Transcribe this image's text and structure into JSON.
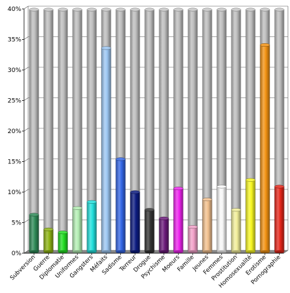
{
  "chart_data": {
    "type": "bar",
    "title": "",
    "xlabel": "",
    "ylabel": "",
    "ylim": [
      0,
      40
    ],
    "y_ticks": [
      0,
      5,
      10,
      15,
      20,
      25,
      30,
      35,
      40
    ],
    "y_tick_labels": [
      "0%",
      "5%",
      "10%",
      "15%",
      "20%",
      "25%",
      "30%",
      "35%",
      "40%"
    ],
    "grid": true,
    "style": "3d-cylinder-stacked-on-gray",
    "background_color": "#bdbdbd",
    "categories": [
      "Subversion",
      "Guerre",
      "Diplomatie",
      "Uniformes",
      "Gangsters",
      "Méfaits",
      "Sadisme",
      "Terreur",
      "Drogue",
      "Psychisme",
      "Moeurs",
      "Famille",
      "Jeunes",
      "Femmes",
      "Prostitution",
      "Homosexualité",
      "Erotisme",
      "Pornographie"
    ],
    "values": [
      6.3,
      3.9,
      3.4,
      7.4,
      8.4,
      33.6,
      15.4,
      10.0,
      7.1,
      5.7,
      10.6,
      4.3,
      8.8,
      10.9,
      7.1,
      12.0,
      34.1,
      10.9
    ],
    "colors": [
      "#2e8b57",
      "#8db313",
      "#22dd22",
      "#b4efb4",
      "#22e0dc",
      "#9cc6f2",
      "#3366e6",
      "#0c1b80",
      "#333333",
      "#6b1a7a",
      "#ee22ee",
      "#f2a0c8",
      "#f2c08e",
      "#f7f7f7",
      "#f2ee9a",
      "#f7f722",
      "#f29212",
      "#e6261a"
    ]
  }
}
